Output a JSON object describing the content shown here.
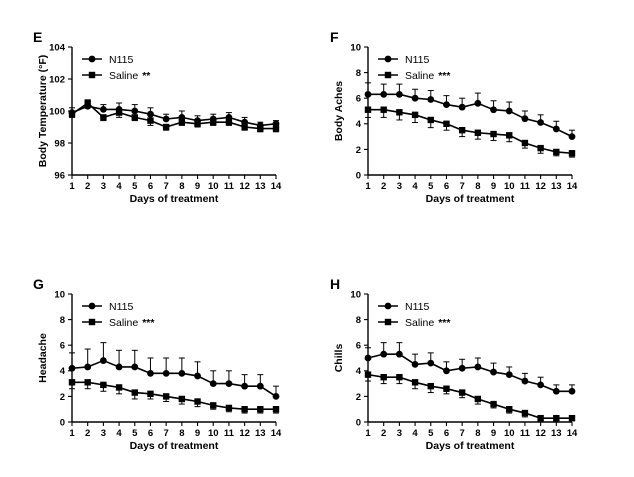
{
  "chart_data": [
    {
      "panel": "E",
      "type": "line",
      "xlabel": "Days of treatment",
      "ylabel": "Body Temperature  (°F)",
      "x": [
        1,
        2,
        3,
        4,
        5,
        6,
        7,
        8,
        9,
        10,
        11,
        12,
        13,
        14
      ],
      "xlim": [
        1,
        14
      ],
      "ylim": [
        96,
        104
      ],
      "yticks": [
        96,
        98,
        100,
        102,
        104
      ],
      "legend_position": "top-left",
      "series": [
        {
          "name": "N115",
          "marker": "circle",
          "values": [
            99.9,
            100.3,
            100.1,
            100.1,
            100.0,
            99.8,
            99.5,
            99.6,
            99.4,
            99.5,
            99.6,
            99.3,
            99.1,
            99.2
          ],
          "errors": [
            0.3,
            0.4,
            0.3,
            0.4,
            0.4,
            0.4,
            0.3,
            0.4,
            0.3,
            0.3,
            0.3,
            0.3,
            0.2,
            0.2
          ]
        },
        {
          "name": "Saline",
          "marker": "square",
          "stars": "**",
          "values": [
            99.8,
            100.5,
            99.6,
            99.9,
            99.6,
            99.4,
            99.0,
            99.3,
            99.2,
            99.3,
            99.3,
            99.0,
            98.9,
            98.9
          ],
          "errors": [
            0.2,
            0.3,
            0.2,
            0.3,
            0.2,
            0.3,
            0.2,
            0.2,
            0.2,
            0.2,
            0.2,
            0.2,
            0.2,
            0.2
          ]
        }
      ]
    },
    {
      "panel": "F",
      "type": "line",
      "xlabel": "Days of treatment",
      "ylabel": "Body Aches",
      "x": [
        1,
        2,
        3,
        4,
        5,
        6,
        7,
        8,
        9,
        10,
        11,
        12,
        13,
        14
      ],
      "xlim": [
        1,
        14
      ],
      "ylim": [
        0,
        10
      ],
      "yticks": [
        0,
        2,
        4,
        6,
        8,
        10
      ],
      "legend_position": "top-left",
      "series": [
        {
          "name": "N115",
          "marker": "circle",
          "values": [
            6.3,
            6.3,
            6.3,
            6.0,
            5.9,
            5.5,
            5.3,
            5.6,
            5.1,
            5.0,
            4.4,
            4.1,
            3.6,
            3.0
          ],
          "errors": [
            0.9,
            0.8,
            0.8,
            0.7,
            0.7,
            0.7,
            0.7,
            0.8,
            0.7,
            0.7,
            0.6,
            0.6,
            0.6,
            0.5
          ]
        },
        {
          "name": "Saline",
          "marker": "square",
          "stars": "***",
          "values": [
            5.1,
            5.1,
            4.9,
            4.7,
            4.3,
            4.0,
            3.5,
            3.3,
            3.2,
            3.1,
            2.5,
            2.1,
            1.8,
            1.7
          ],
          "errors": [
            0.6,
            0.6,
            0.6,
            0.6,
            0.6,
            0.5,
            0.5,
            0.5,
            0.5,
            0.5,
            0.4,
            0.4,
            0.3,
            0.3
          ]
        }
      ]
    },
    {
      "panel": "G",
      "type": "line",
      "xlabel": "Days of treatment",
      "ylabel": "Headache",
      "x": [
        1,
        2,
        3,
        4,
        5,
        6,
        7,
        8,
        9,
        10,
        11,
        12,
        13,
        14
      ],
      "xlim": [
        1,
        14
      ],
      "ylim": [
        0,
        10
      ],
      "yticks": [
        0,
        2,
        4,
        6,
        8,
        10
      ],
      "legend_position": "top-left",
      "series": [
        {
          "name": "N115",
          "marker": "circle",
          "values": [
            4.2,
            4.3,
            4.8,
            4.3,
            4.3,
            3.8,
            3.8,
            3.8,
            3.6,
            3.0,
            3.0,
            2.8,
            2.8,
            2.0
          ],
          "errors": [
            1.2,
            1.4,
            1.4,
            1.3,
            1.3,
            1.2,
            1.2,
            1.2,
            1.1,
            1.0,
            1.0,
            0.9,
            0.9,
            0.8
          ]
        },
        {
          "name": "Saline",
          "marker": "square",
          "stars": "***",
          "values": [
            3.1,
            3.1,
            2.9,
            2.7,
            2.3,
            2.2,
            2.0,
            1.8,
            1.6,
            1.3,
            1.1,
            1.0,
            1.0,
            1.0
          ],
          "errors": [
            0.5,
            0.5,
            0.5,
            0.5,
            0.5,
            0.4,
            0.4,
            0.4,
            0.4,
            0.3,
            0.3,
            0.3,
            0.3,
            0.3
          ]
        }
      ]
    },
    {
      "panel": "H",
      "type": "line",
      "xlabel": "Days of treatment",
      "ylabel": "Chills",
      "x": [
        1,
        2,
        3,
        4,
        5,
        6,
        7,
        8,
        9,
        10,
        11,
        12,
        13,
        14
      ],
      "xlim": [
        1,
        14
      ],
      "ylim": [
        0,
        10
      ],
      "yticks": [
        0,
        2,
        4,
        6,
        8,
        10
      ],
      "legend_position": "top-left",
      "series": [
        {
          "name": "N115",
          "marker": "circle",
          "values": [
            5.0,
            5.3,
            5.3,
            4.5,
            4.6,
            4.0,
            4.2,
            4.3,
            3.9,
            3.7,
            3.2,
            2.9,
            2.4,
            2.4
          ],
          "errors": [
            0.8,
            0.9,
            0.9,
            0.8,
            0.8,
            0.7,
            0.7,
            0.7,
            0.7,
            0.6,
            0.6,
            0.6,
            0.5,
            0.5
          ]
        },
        {
          "name": "Saline",
          "marker": "square",
          "stars": "***",
          "values": [
            3.7,
            3.5,
            3.5,
            3.1,
            2.8,
            2.6,
            2.3,
            1.8,
            1.4,
            1.0,
            0.7,
            0.3,
            0.3,
            0.3
          ],
          "errors": [
            0.5,
            0.5,
            0.5,
            0.5,
            0.5,
            0.4,
            0.4,
            0.4,
            0.3,
            0.3,
            0.3,
            0.2,
            0.2,
            0.2
          ]
        }
      ]
    }
  ]
}
